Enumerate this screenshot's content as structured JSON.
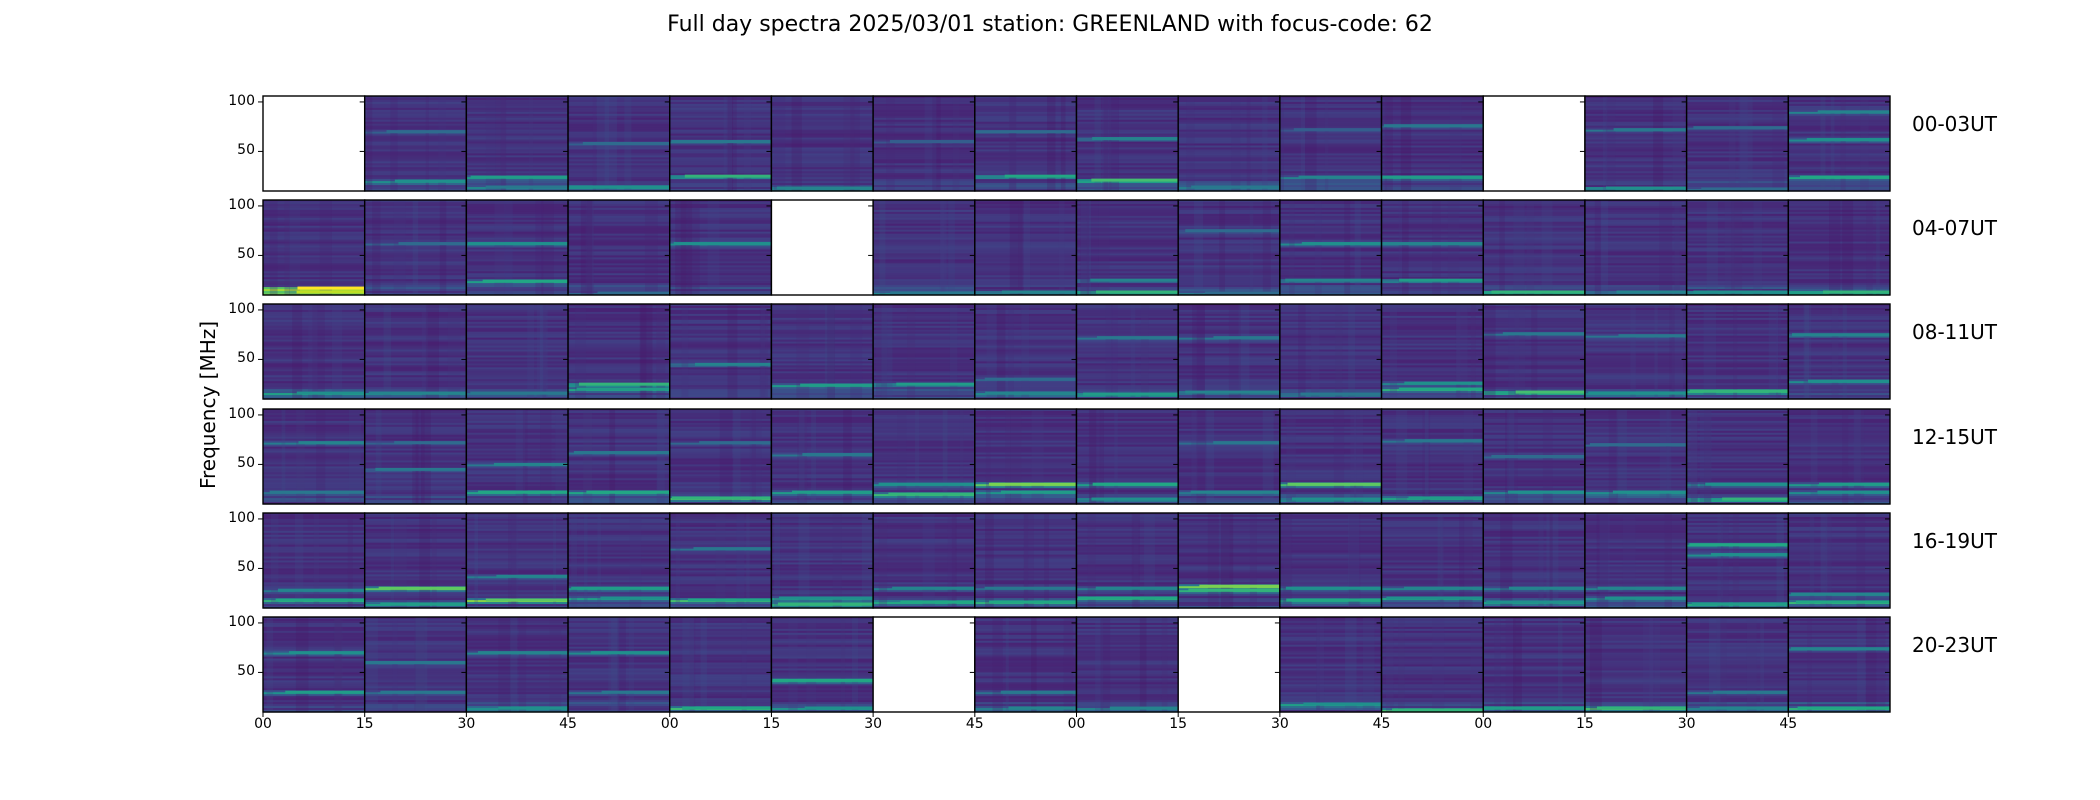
{
  "chart_data": {
    "type": "heatmap",
    "title": "Full day spectra 2025/03/01 station: GREENLAND with focus-code: 62",
    "ylabel": "Frequency [MHz]",
    "xlabel": "",
    "colormap": "viridis",
    "ylim": [
      10,
      106
    ],
    "yticks": [
      100,
      50
    ],
    "xtick_labels": [
      "00",
      "15",
      "30",
      "45",
      "00",
      "15",
      "30",
      "45",
      "00",
      "15",
      "30",
      "45",
      "00",
      "15",
      "30",
      "45"
    ],
    "rows": [
      {
        "label": "00-03UT",
        "panels": [
          {
            "empty": true
          },
          {
            "bands": [
              [
                20,
                0.45
              ],
              [
                70,
                0.3
              ]
            ]
          },
          {
            "bands": [
              [
                24,
                0.5
              ],
              [
                14,
                0.35
              ]
            ]
          },
          {
            "bands": [
              [
                14,
                0.45
              ],
              [
                58,
                0.3
              ]
            ]
          },
          {
            "bands": [
              [
                25,
                0.6
              ],
              [
                60,
                0.35
              ]
            ]
          },
          {
            "bands": [
              [
                13,
                0.4
              ]
            ]
          },
          {
            "bands": [
              [
                60,
                0.25
              ]
            ]
          },
          {
            "bands": [
              [
                25,
                0.55
              ],
              [
                70,
                0.3
              ]
            ]
          },
          {
            "bands": [
              [
                21,
                0.65
              ],
              [
                63,
                0.4
              ]
            ]
          },
          {
            "bands": [
              [
                14,
                0.35
              ]
            ]
          },
          {
            "bands": [
              [
                24,
                0.4
              ],
              [
                72,
                0.25
              ]
            ]
          },
          {
            "bands": [
              [
                24,
                0.5
              ],
              [
                76,
                0.35
              ]
            ]
          },
          {
            "empty": true
          },
          {
            "bands": [
              [
                13,
                0.45
              ],
              [
                72,
                0.35
              ]
            ]
          },
          {
            "bands": [
              [
                12,
                0.3
              ],
              [
                74,
                0.3
              ]
            ]
          },
          {
            "bands": [
              [
                24,
                0.55
              ],
              [
                62,
                0.45
              ],
              [
                90,
                0.4
              ]
            ]
          }
        ]
      },
      {
        "label": "04-07UT",
        "panels": [
          {
            "bands": [
              [
                17,
                0.95
              ],
              [
                13,
                0.85
              ]
            ]
          },
          {
            "bands": [
              [
                62,
                0.3
              ]
            ]
          },
          {
            "bands": [
              [
                24,
                0.55
              ],
              [
                62,
                0.45
              ]
            ]
          },
          {
            "bands": [
              [
                12,
                0.3
              ]
            ]
          },
          {
            "bands": [
              [
                62,
                0.45
              ]
            ]
          },
          {
            "empty": true
          },
          {
            "bands": [
              [
                12,
                0.35
              ]
            ]
          },
          {
            "bands": [
              [
                13,
                0.4
              ]
            ]
          },
          {
            "bands": [
              [
                13,
                0.6
              ],
              [
                25,
                0.4
              ]
            ]
          },
          {
            "bands": [
              [
                12,
                0.3
              ],
              [
                75,
                0.3
              ]
            ]
          },
          {
            "bands": [
              [
                62,
                0.45
              ],
              [
                25,
                0.4
              ]
            ]
          },
          {
            "bands": [
              [
                25,
                0.5
              ],
              [
                62,
                0.4
              ]
            ]
          },
          {
            "bands": [
              [
                13,
                0.6
              ]
            ]
          },
          {
            "bands": [
              [
                13,
                0.4
              ]
            ]
          },
          {
            "bands": [
              [
                13,
                0.45
              ]
            ]
          },
          {
            "bands": [
              [
                13,
                0.6
              ]
            ]
          }
        ]
      },
      {
        "label": "08-11UT",
        "panels": [
          {
            "bands": [
              [
                16,
                0.45
              ]
            ]
          },
          {
            "bands": [
              [
                16,
                0.4
              ]
            ]
          },
          {
            "bands": [
              [
                16,
                0.35
              ]
            ]
          },
          {
            "bands": [
              [
                25,
                0.6
              ],
              [
                20,
                0.5
              ]
            ]
          },
          {
            "bands": [
              [
                45,
                0.4
              ]
            ]
          },
          {
            "bands": [
              [
                24,
                0.5
              ]
            ]
          },
          {
            "bands": [
              [
                25,
                0.5
              ]
            ]
          },
          {
            "bands": [
              [
                16,
                0.4
              ],
              [
                30,
                0.3
              ]
            ]
          },
          {
            "bands": [
              [
                15,
                0.5
              ],
              [
                72,
                0.35
              ]
            ]
          },
          {
            "bands": [
              [
                17,
                0.4
              ],
              [
                72,
                0.35
              ]
            ]
          },
          {
            "bands": [
              [
                15,
                0.35
              ]
            ]
          },
          {
            "bands": [
              [
                20,
                0.55
              ],
              [
                26,
                0.45
              ]
            ]
          },
          {
            "bands": [
              [
                17,
                0.65
              ],
              [
                76,
                0.35
              ]
            ]
          },
          {
            "bands": [
              [
                16,
                0.45
              ],
              [
                74,
                0.35
              ]
            ]
          },
          {
            "bands": [
              [
                18,
                0.6
              ]
            ]
          },
          {
            "bands": [
              [
                28,
                0.45
              ],
              [
                75,
                0.4
              ]
            ]
          }
        ]
      },
      {
        "label": "12-15UT",
        "panels": [
          {
            "bands": [
              [
                72,
                0.4
              ],
              [
                22,
                0.35
              ]
            ]
          },
          {
            "bands": [
              [
                72,
                0.3
              ],
              [
                45,
                0.35
              ]
            ]
          },
          {
            "bands": [
              [
                22,
                0.55
              ],
              [
                50,
                0.4
              ]
            ]
          },
          {
            "bands": [
              [
                22,
                0.55
              ],
              [
                62,
                0.35
              ]
            ]
          },
          {
            "bands": [
              [
                16,
                0.6
              ],
              [
                72,
                0.3
              ]
            ]
          },
          {
            "bands": [
              [
                22,
                0.5
              ],
              [
                60,
                0.35
              ]
            ]
          },
          {
            "bands": [
              [
                20,
                0.6
              ],
              [
                30,
                0.45
              ]
            ]
          },
          {
            "bands": [
              [
                30,
                0.75
              ],
              [
                22,
                0.5
              ]
            ]
          },
          {
            "bands": [
              [
                30,
                0.55
              ],
              [
                15,
                0.45
              ]
            ]
          },
          {
            "bands": [
              [
                22,
                0.4
              ],
              [
                72,
                0.35
              ]
            ]
          },
          {
            "bands": [
              [
                30,
                0.7
              ],
              [
                15,
                0.45
              ]
            ]
          },
          {
            "bands": [
              [
                16,
                0.5
              ],
              [
                74,
                0.35
              ]
            ]
          },
          {
            "bands": [
              [
                22,
                0.45
              ],
              [
                58,
                0.3
              ]
            ]
          },
          {
            "bands": [
              [
                22,
                0.45
              ],
              [
                70,
                0.3
              ]
            ]
          },
          {
            "bands": [
              [
                15,
                0.6
              ],
              [
                30,
                0.45
              ]
            ]
          },
          {
            "bands": [
              [
                30,
                0.5
              ],
              [
                22,
                0.45
              ]
            ]
          }
        ]
      },
      {
        "label": "16-19UT",
        "panels": [
          {
            "bands": [
              [
                18,
                0.55
              ],
              [
                28,
                0.4
              ]
            ]
          },
          {
            "bands": [
              [
                30,
                0.7
              ],
              [
                14,
                0.5
              ]
            ]
          },
          {
            "bands": [
              [
                18,
                0.7
              ],
              [
                42,
                0.4
              ]
            ]
          },
          {
            "bands": [
              [
                30,
                0.5
              ],
              [
                20,
                0.45
              ]
            ]
          },
          {
            "bands": [
              [
                18,
                0.55
              ],
              [
                70,
                0.35
              ]
            ]
          },
          {
            "bands": [
              [
                14,
                0.6
              ],
              [
                20,
                0.45
              ]
            ]
          },
          {
            "bands": [
              [
                16,
                0.55
              ],
              [
                30,
                0.4
              ]
            ]
          },
          {
            "bands": [
              [
                16,
                0.55
              ],
              [
                30,
                0.35
              ]
            ]
          },
          {
            "bands": [
              [
                20,
                0.55
              ],
              [
                30,
                0.4
              ]
            ]
          },
          {
            "bands": [
              [
                32,
                0.75
              ],
              [
                28,
                0.6
              ]
            ]
          },
          {
            "bands": [
              [
                18,
                0.55
              ],
              [
                30,
                0.45
              ]
            ]
          },
          {
            "bands": [
              [
                20,
                0.45
              ],
              [
                30,
                0.4
              ]
            ]
          },
          {
            "bands": [
              [
                16,
                0.45
              ],
              [
                30,
                0.4
              ]
            ]
          },
          {
            "bands": [
              [
                20,
                0.45
              ],
              [
                30,
                0.4
              ]
            ]
          },
          {
            "bands": [
              [
                74,
                0.55
              ],
              [
                64,
                0.45
              ],
              [
                14,
                0.5
              ]
            ]
          },
          {
            "bands": [
              [
                16,
                0.55
              ],
              [
                24,
                0.4
              ]
            ]
          }
        ]
      },
      {
        "label": "20-23UT",
        "panels": [
          {
            "bands": [
              [
                30,
                0.5
              ],
              [
                70,
                0.45
              ]
            ]
          },
          {
            "bands": [
              [
                30,
                0.35
              ],
              [
                60,
                0.35
              ]
            ]
          },
          {
            "bands": [
              [
                14,
                0.45
              ],
              [
                70,
                0.4
              ]
            ]
          },
          {
            "bands": [
              [
                70,
                0.45
              ],
              [
                30,
                0.35
              ]
            ]
          },
          {
            "bands": [
              [
                14,
                0.55
              ]
            ]
          },
          {
            "bands": [
              [
                42,
                0.55
              ],
              [
                14,
                0.45
              ]
            ]
          },
          {
            "empty": true
          },
          {
            "bands": [
              [
                30,
                0.35
              ],
              [
                14,
                0.4
              ]
            ]
          },
          {
            "bands": [
              [
                14,
                0.4
              ]
            ]
          },
          {
            "empty": true
          },
          {
            "bands": [
              [
                18,
                0.45
              ]
            ]
          },
          {
            "bands": [
              [
                12,
                0.6
              ]
            ]
          },
          {
            "bands": [
              [
                14,
                0.5
              ]
            ]
          },
          {
            "bands": [
              [
                14,
                0.6
              ]
            ]
          },
          {
            "bands": [
              [
                30,
                0.35
              ],
              [
                14,
                0.4
              ]
            ]
          },
          {
            "bands": [
              [
                14,
                0.55
              ],
              [
                74,
                0.4
              ]
            ]
          }
        ]
      }
    ]
  }
}
